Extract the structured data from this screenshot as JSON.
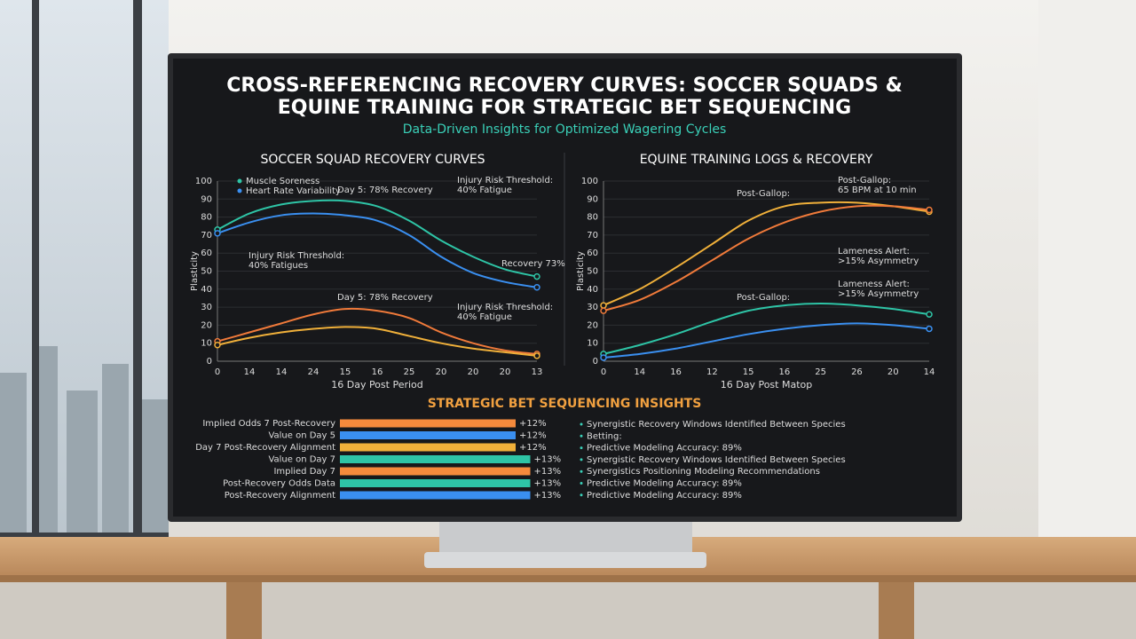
{
  "header": {
    "title": [
      "CROSS-REFERENCING RECOVERY CURVES: SOCCER SQUADS &",
      "EQUINE TRAINING FOR STRATEGIC BET SEQUENCING"
    ],
    "subtitle": "Data-Driven Insights for Optimized Wagering Cycles"
  },
  "chart_data": [
    {
      "type": "line",
      "title": "SOCCER SQUAD RECOVERY CURVES",
      "x_label": "16 Day Post Period",
      "y_label": "Plasticity",
      "categories": [
        "0",
        "14",
        "14",
        "24",
        "15",
        "16",
        "25",
        "20",
        "20",
        "20",
        "13"
      ],
      "ylim": [
        0,
        100
      ],
      "yticks": [
        0,
        10,
        20,
        30,
        40,
        50,
        60,
        70,
        80,
        90,
        100
      ],
      "grid": true,
      "series": [
        {
          "name": "Muscle Soreness",
          "color": "#2ec4a6",
          "values": [
            73,
            82,
            87,
            89,
            89,
            86,
            78,
            67,
            58,
            51,
            47
          ]
        },
        {
          "name": "Heart Rate Variability",
          "color": "#3a8ff0",
          "values": [
            71,
            77,
            81,
            82,
            81,
            78,
            70,
            58,
            49,
            44,
            41
          ]
        },
        {
          "color": "#f07a3a",
          "values": [
            11,
            16,
            21,
            26,
            29,
            28,
            24,
            16,
            10,
            6,
            4
          ]
        },
        {
          "color": "#f0b03a",
          "values": [
            9,
            13,
            16,
            18,
            19,
            18,
            14,
            10,
            7,
            5,
            3
          ]
        }
      ],
      "annotations": [
        [
          "Day 5: 78% Recovery"
        ],
        [
          "Injury Risk Threshold:",
          "40% Fatigue"
        ],
        [
          "Injury Risk Threshold:",
          "40% Fatigues"
        ],
        [
          "Recovery 73%"
        ],
        [
          "Day 5: 78% Recovery"
        ],
        [
          "Injury Risk Threshold:",
          "40% Fatigue"
        ]
      ]
    },
    {
      "type": "line",
      "title": "EQUINE TRAINING LOGS & RECOVERY",
      "x_label": "16 Day Post Matop",
      "y_label": "Plasticity",
      "categories": [
        "0",
        "14",
        "16",
        "12",
        "15",
        "16",
        "25",
        "26",
        "20",
        "14"
      ],
      "ylim": [
        0,
        100
      ],
      "yticks": [
        0,
        10,
        20,
        30,
        40,
        50,
        60,
        70,
        80,
        90,
        100
      ],
      "grid": true,
      "series": [
        {
          "color": "#f0b03a",
          "values": [
            31,
            40,
            52,
            65,
            78,
            86,
            88,
            88,
            86,
            83
          ]
        },
        {
          "color": "#f07a3a",
          "values": [
            28,
            34,
            44,
            56,
            68,
            77,
            83,
            86,
            86,
            84
          ]
        },
        {
          "color": "#2ec4a6",
          "values": [
            4,
            9,
            15,
            22,
            28,
            31,
            32,
            31,
            29,
            26
          ]
        },
        {
          "color": "#3a8ff0",
          "values": [
            2,
            4,
            7,
            11,
            15,
            18,
            20,
            21,
            20,
            18
          ]
        }
      ],
      "annotations": [
        [
          "Post-Gallop:"
        ],
        [
          "Post-Gallop:",
          "65 BPM at 10 min"
        ],
        [
          "Lameness Alert:",
          ">15% Asymmetry"
        ],
        [
          "Lameness Alert:",
          ">15% Asymmetry"
        ],
        [
          "Post-Gallop:"
        ]
      ]
    },
    {
      "type": "hbar",
      "title": "STRATEGIC BET SEQUENCING INSIGHTS",
      "categories": [
        "Implied Odds 7 Post-Recovery",
        "Value on Day 5",
        "Day 7 Post-Recovery Alignment",
        "Value on Day 7",
        "Implied Day 7",
        "Post-Recovery Odds Data",
        "Post-Recovery Alignment"
      ],
      "values": [
        12,
        12,
        12,
        13,
        13,
        13,
        13
      ],
      "value_labels": [
        "+12%",
        "+12%",
        "+12%",
        "+13%",
        "+13%",
        "+13%",
        "+13%"
      ],
      "colors": [
        "#f58a3c",
        "#3a8ff0",
        "#f0b03a",
        "#2ec4a6",
        "#f58a3c",
        "#2ec4a6",
        "#3a8ff0"
      ]
    }
  ],
  "bullets": [
    "Synergistic Recovery Windows Identified Between Species",
    "Betting:",
    "Predictive Modeling Accuracy: 89%",
    "Synergistic Recovery Windows Identified Between Species",
    "Synergistics Positioning Modeling Recommendations",
    "Predictive Modeling Accuracy: 89%",
    "Predictive Modeling Accuracy: 89%"
  ]
}
